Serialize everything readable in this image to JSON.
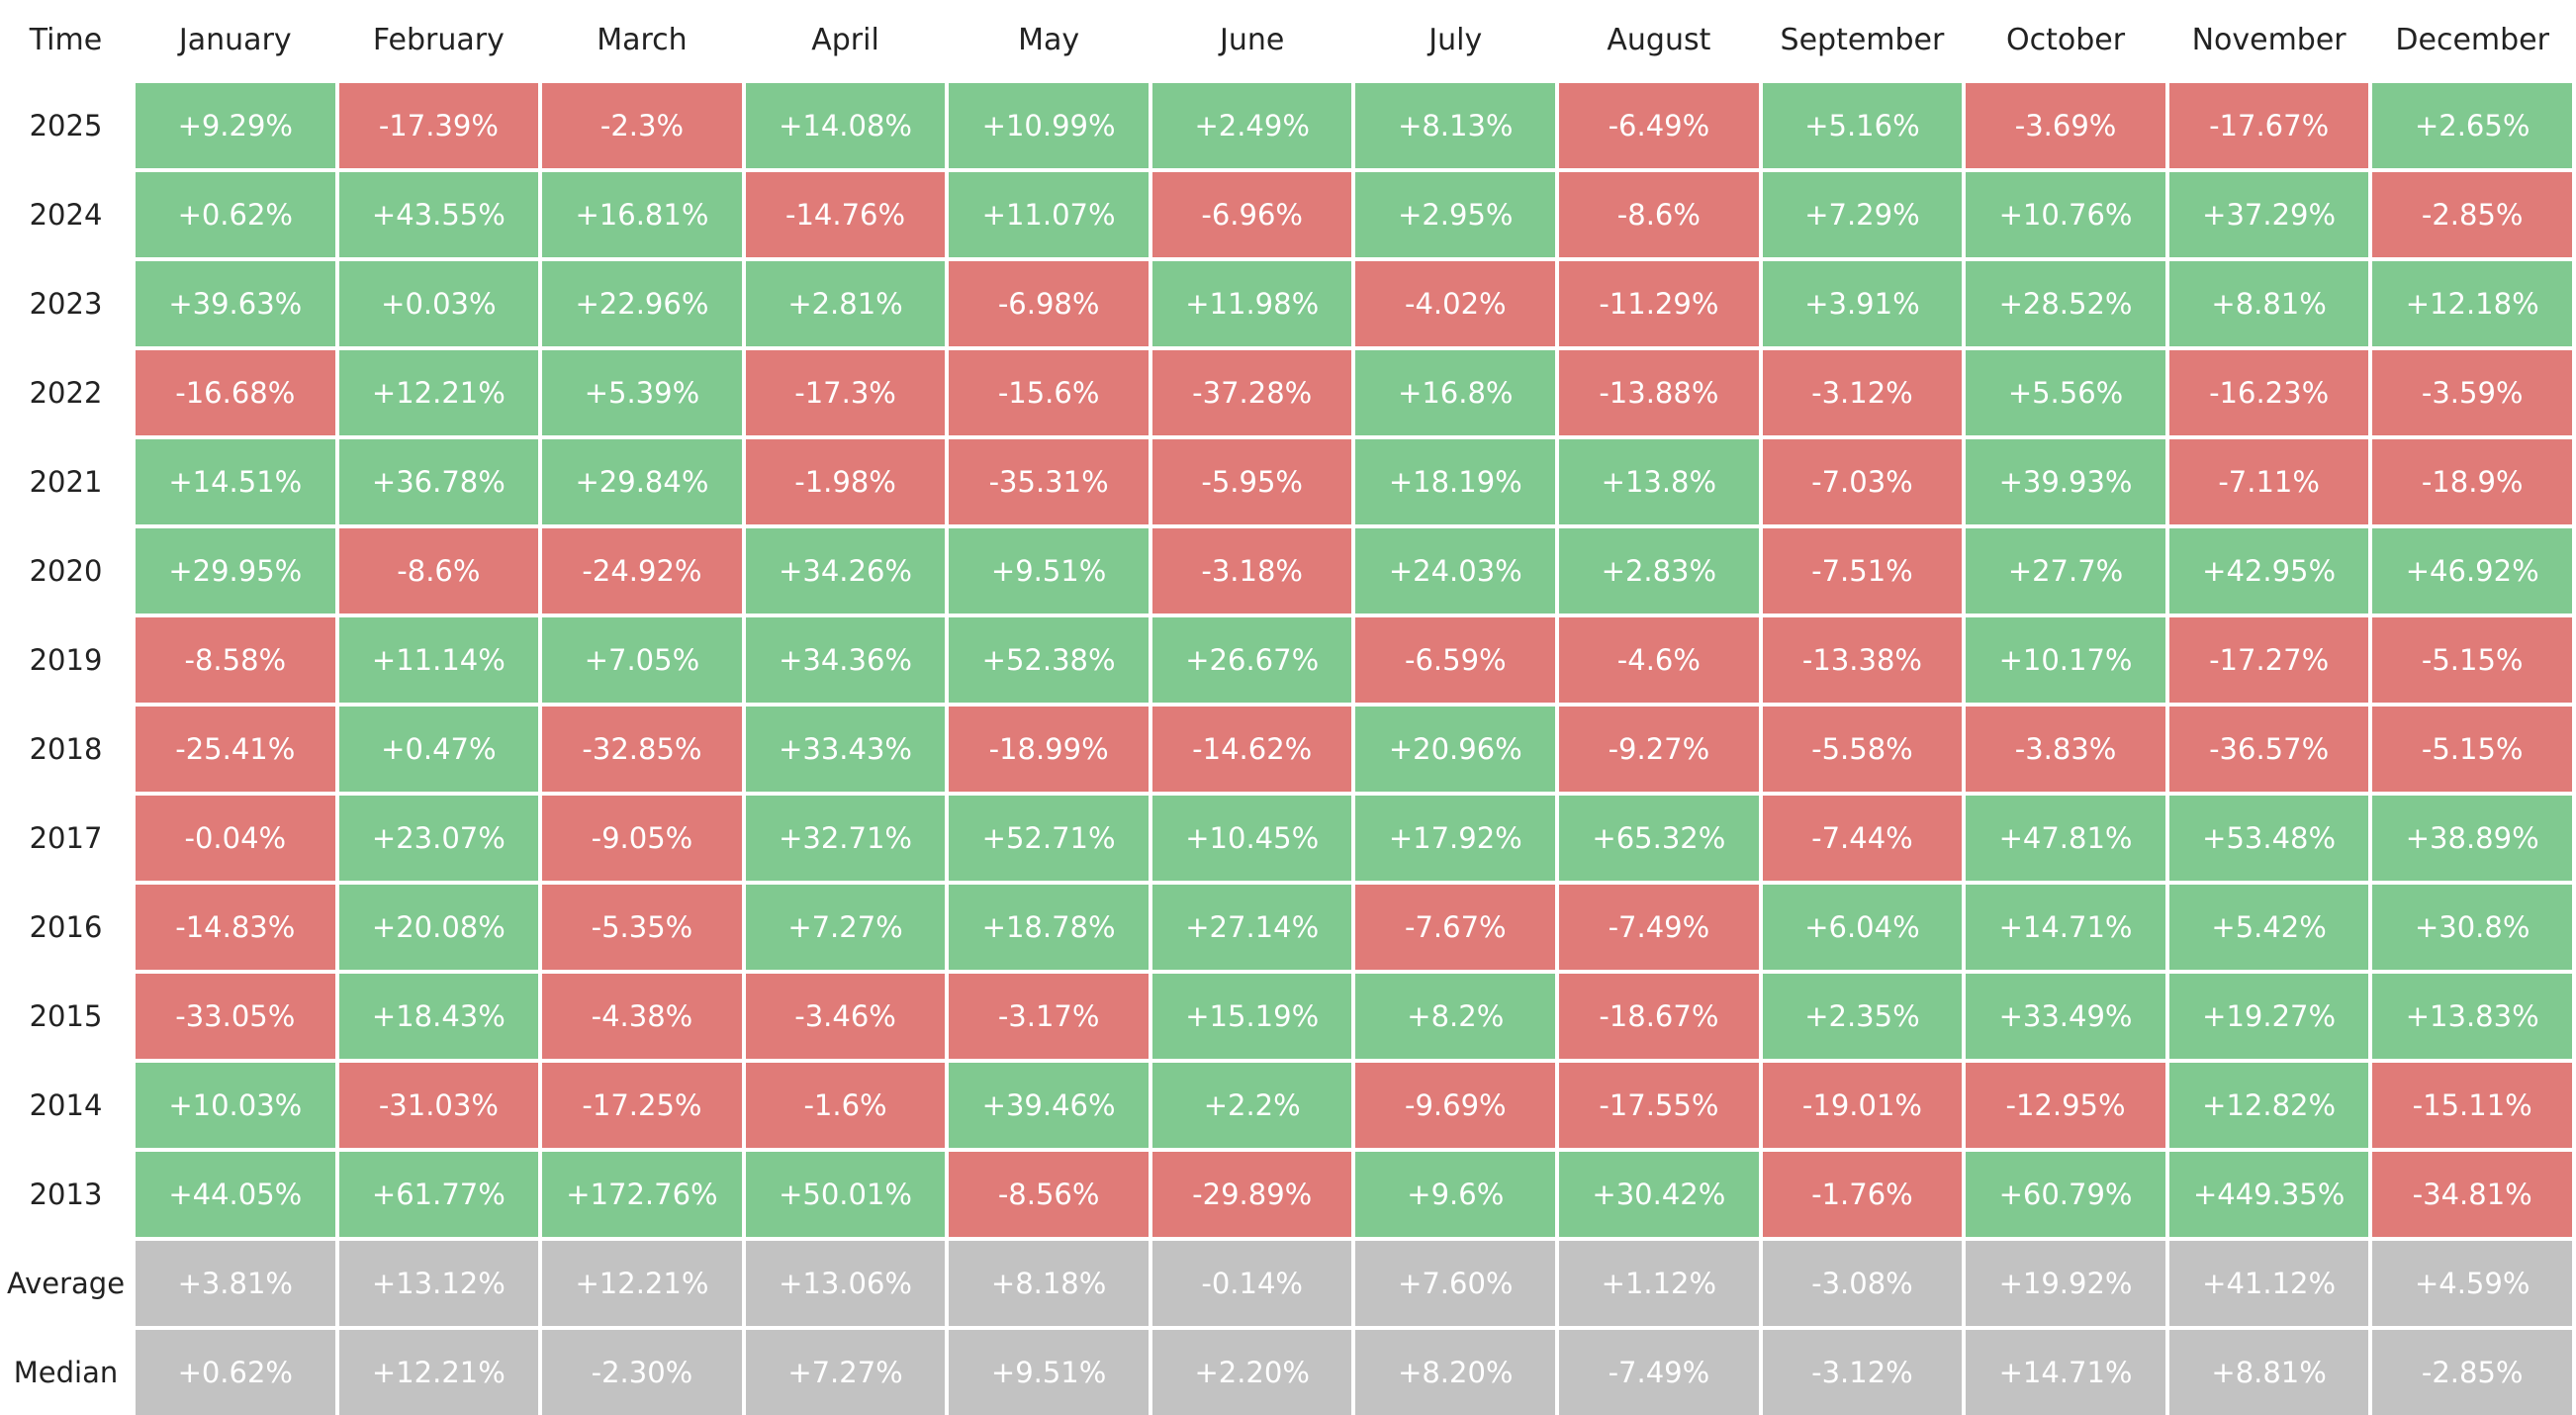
{
  "table": {
    "header": [
      "Time",
      "January",
      "February",
      "March",
      "April",
      "May",
      "June",
      "July",
      "August",
      "September",
      "October",
      "November",
      "December"
    ],
    "rows": [
      [
        "2025",
        "+9.29%",
        "-17.39%",
        "-2.3%",
        "+14.08%",
        "+10.99%",
        "+2.49%",
        "+8.13%",
        "-6.49%",
        "+5.16%",
        "-3.69%",
        "-17.67%",
        "+2.65%"
      ],
      [
        "2024",
        "+0.62%",
        "+43.55%",
        "+16.81%",
        "-14.76%",
        "+11.07%",
        "-6.96%",
        "+2.95%",
        "-8.6%",
        "+7.29%",
        "+10.76%",
        "+37.29%",
        "-2.85%"
      ],
      [
        "2023",
        "+39.63%",
        "+0.03%",
        "+22.96%",
        "+2.81%",
        "-6.98%",
        "+11.98%",
        "-4.02%",
        "-11.29%",
        "+3.91%",
        "+28.52%",
        "+8.81%",
        "+12.18%"
      ],
      [
        "2022",
        "-16.68%",
        "+12.21%",
        "+5.39%",
        "-17.3%",
        "-15.6%",
        "-37.28%",
        "+16.8%",
        "-13.88%",
        "-3.12%",
        "+5.56%",
        "-16.23%",
        "-3.59%"
      ],
      [
        "2021",
        "+14.51%",
        "+36.78%",
        "+29.84%",
        "-1.98%",
        "-35.31%",
        "-5.95%",
        "+18.19%",
        "+13.8%",
        "-7.03%",
        "+39.93%",
        "-7.11%",
        "-18.9%"
      ],
      [
        "2020",
        "+29.95%",
        "-8.6%",
        "-24.92%",
        "+34.26%",
        "+9.51%",
        "-3.18%",
        "+24.03%",
        "+2.83%",
        "-7.51%",
        "+27.7%",
        "+42.95%",
        "+46.92%"
      ],
      [
        "2019",
        "-8.58%",
        "+11.14%",
        "+7.05%",
        "+34.36%",
        "+52.38%",
        "+26.67%",
        "-6.59%",
        "-4.6%",
        "-13.38%",
        "+10.17%",
        "-17.27%",
        "-5.15%"
      ],
      [
        "2018",
        "-25.41%",
        "+0.47%",
        "-32.85%",
        "+33.43%",
        "-18.99%",
        "-14.62%",
        "+20.96%",
        "-9.27%",
        "-5.58%",
        "-3.83%",
        "-36.57%",
        "-5.15%"
      ],
      [
        "2017",
        "-0.04%",
        "+23.07%",
        "-9.05%",
        "+32.71%",
        "+52.71%",
        "+10.45%",
        "+17.92%",
        "+65.32%",
        "-7.44%",
        "+47.81%",
        "+53.48%",
        "+38.89%"
      ],
      [
        "2016",
        "-14.83%",
        "+20.08%",
        "-5.35%",
        "+7.27%",
        "+18.78%",
        "+27.14%",
        "-7.67%",
        "-7.49%",
        "+6.04%",
        "+14.71%",
        "+5.42%",
        "+30.8%"
      ],
      [
        "2015",
        "-33.05%",
        "+18.43%",
        "-4.38%",
        "-3.46%",
        "-3.17%",
        "+15.19%",
        "+8.2%",
        "-18.67%",
        "+2.35%",
        "+33.49%",
        "+19.27%",
        "+13.83%"
      ],
      [
        "2014",
        "+10.03%",
        "-31.03%",
        "-17.25%",
        "-1.6%",
        "+39.46%",
        "+2.2%",
        "-9.69%",
        "-17.55%",
        "-19.01%",
        "-12.95%",
        "+12.82%",
        "-15.11%"
      ],
      [
        "2013",
        "+44.05%",
        "+61.77%",
        "+172.76%",
        "+50.01%",
        "-8.56%",
        "-29.89%",
        "+9.6%",
        "+30.42%",
        "-1.76%",
        "+60.79%",
        "+449.35%",
        "-34.81%"
      ]
    ],
    "summary_rows": [
      [
        "Average",
        "+3.81%",
        "+13.12%",
        "+12.21%",
        "+13.06%",
        "+8.18%",
        "-0.14%",
        "+7.60%",
        "+1.12%",
        "-3.08%",
        "+19.92%",
        "+41.12%",
        "+4.59%"
      ],
      [
        "Median",
        "+0.62%",
        "+12.21%",
        "-2.30%",
        "+7.27%",
        "+9.51%",
        "+2.20%",
        "+8.20%",
        "-7.49%",
        "-3.12%",
        "+14.71%",
        "+8.81%",
        "-2.85%"
      ]
    ],
    "colors": {
      "up": "#80c990",
      "down": "#e07b78",
      "summary": "#c2c2c2"
    }
  }
}
